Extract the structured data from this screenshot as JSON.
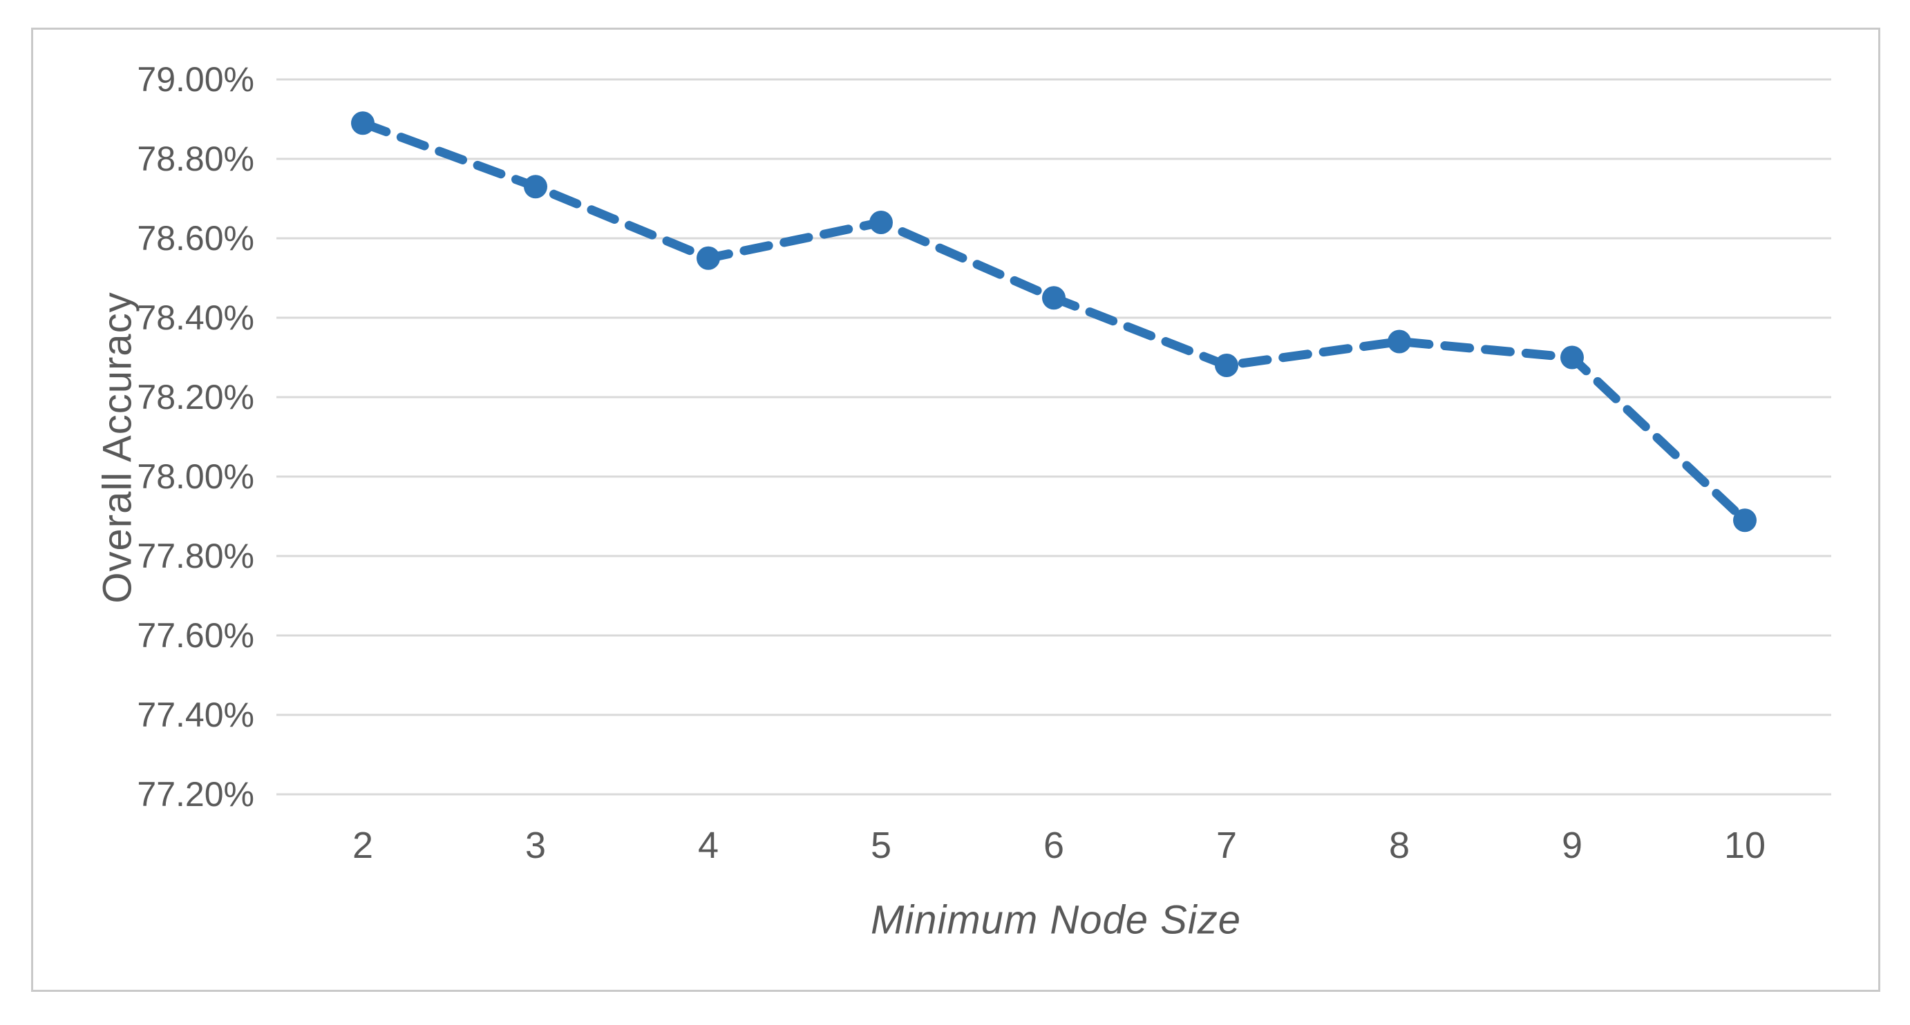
{
  "chart_data": {
    "type": "line",
    "title": "",
    "xlabel": "Minimum Node Size",
    "ylabel": "Overall Accuracy",
    "categories": [
      "2",
      "3",
      "4",
      "5",
      "6",
      "7",
      "8",
      "9",
      "10"
    ],
    "series": [
      {
        "name": "Overall Accuracy",
        "values": [
          78.89,
          78.73,
          78.55,
          78.64,
          78.45,
          78.28,
          78.34,
          78.3,
          77.89
        ],
        "color": "#2E74B5",
        "line_style": "dashed",
        "marker": "circle"
      }
    ],
    "ylim": [
      77.2,
      79.0
    ],
    "y_tick_step": 0.2,
    "y_ticks": [
      {
        "value": 79.0,
        "label": "79.00%"
      },
      {
        "value": 78.8,
        "label": "78.80%"
      },
      {
        "value": 78.6,
        "label": "78.60%"
      },
      {
        "value": 78.4,
        "label": "78.40%"
      },
      {
        "value": 78.2,
        "label": "78.20%"
      },
      {
        "value": 78.0,
        "label": "78.00%"
      },
      {
        "value": 77.8,
        "label": "77.80%"
      },
      {
        "value": 77.6,
        "label": "77.60%"
      },
      {
        "value": 77.4,
        "label": "77.40%"
      },
      {
        "value": 77.2,
        "label": "77.20%"
      }
    ],
    "grid": "horizontal-only",
    "legend": "none",
    "colors": {
      "gridline": "#D9D9D9",
      "axis_text": "#595959",
      "frame_border": "#C9C9C9",
      "chart_background": "#FFFFFF"
    }
  }
}
